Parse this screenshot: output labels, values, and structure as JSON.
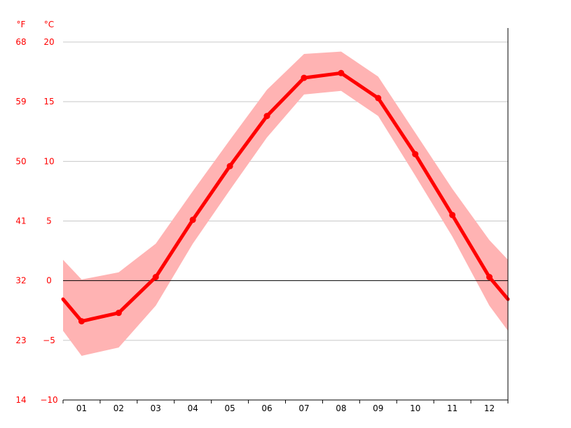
{
  "chart_data": {
    "type": "line",
    "units": {
      "fahrenheit": "°F",
      "celsius": "°C"
    },
    "categories": [
      "01",
      "02",
      "03",
      "04",
      "05",
      "06",
      "07",
      "08",
      "09",
      "10",
      "11",
      "12"
    ],
    "y_celsius_ticks": [
      "20",
      "15",
      "10",
      "5",
      "0",
      "−5",
      "−10"
    ],
    "y_fahrenheit_ticks": [
      "68",
      "59",
      "50",
      "41",
      "32",
      "23",
      "14"
    ],
    "ylim": [
      -10,
      20
    ],
    "grid": true,
    "series": [
      {
        "values": [
          -3.4,
          -2.7,
          0.3,
          5.1,
          9.6,
          13.8,
          17.0,
          17.4,
          15.3,
          10.6,
          5.5,
          0.3
        ],
        "range_high": [
          0.1,
          0.7,
          3.1,
          7.5,
          11.8,
          16.0,
          19.0,
          19.2,
          17.1,
          12.4,
          7.7,
          3.4
        ],
        "range_low": [
          -6.3,
          -5.6,
          -2.1,
          3.1,
          7.6,
          12.0,
          15.6,
          15.9,
          13.8,
          8.8,
          3.7,
          -2.1
        ],
        "color": "#ff0000",
        "band_color": "#ffb3b3"
      }
    ]
  }
}
